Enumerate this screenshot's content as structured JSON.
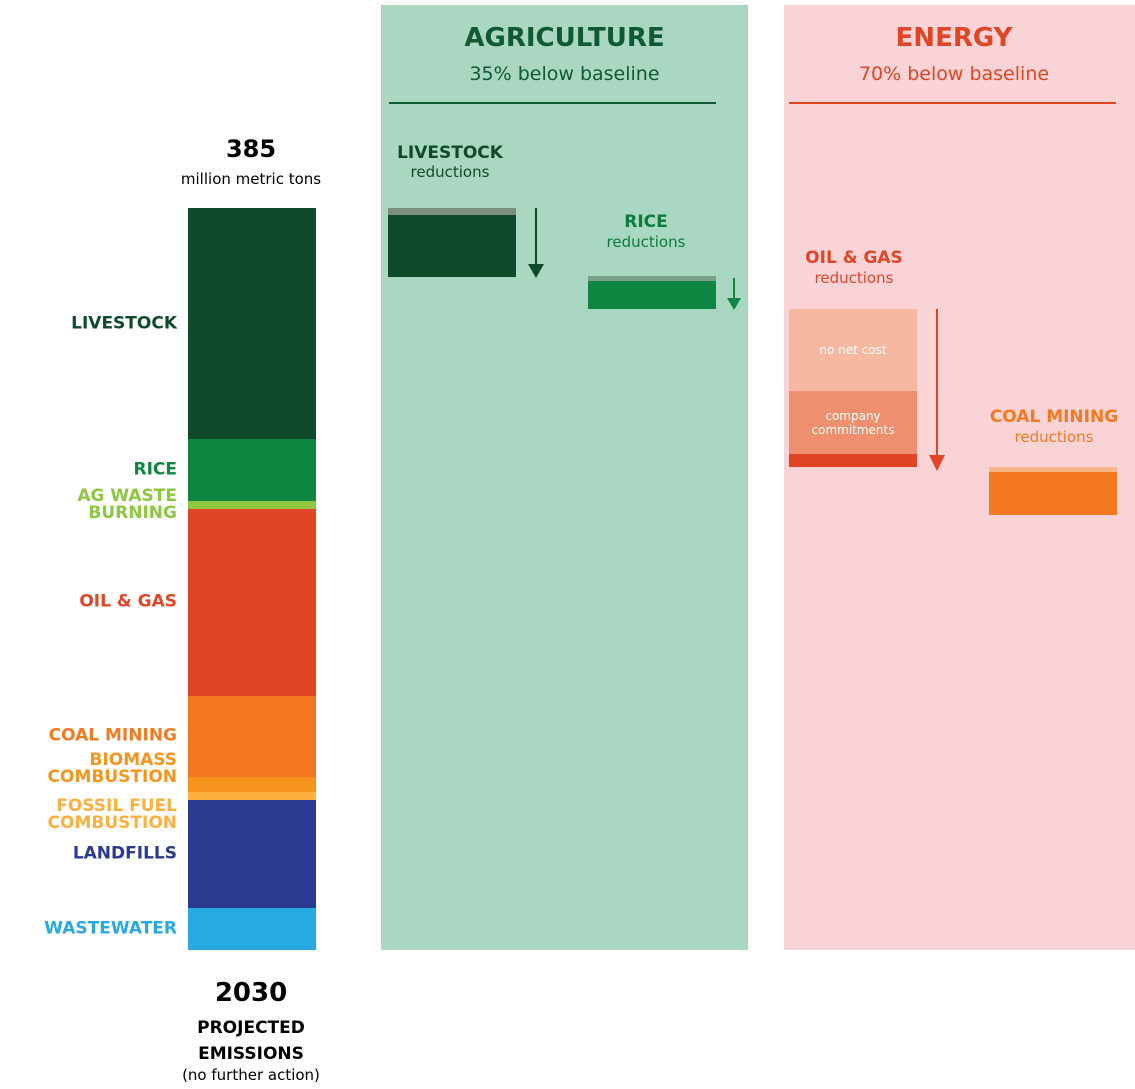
{
  "chart_data": {
    "type": "stacked-column",
    "total": 385,
    "unit": "million metric tons",
    "year": "2030",
    "caption": "PROJECTED EMISSIONS",
    "note": "(no further action)",
    "series": [
      {
        "name": "LIVESTOCK",
        "color": "#0f4a2a",
        "values": [
          120
        ]
      },
      {
        "name": "RICE",
        "color": "#0e8540",
        "values": [
          32
        ]
      },
      {
        "name": "AG WASTE\nBURNING",
        "color": "#8dc63f",
        "values": [
          4
        ]
      },
      {
        "name": "OIL & GAS",
        "color": "#e04526",
        "values": [
          97
        ]
      },
      {
        "name": "COAL MINING",
        "color": "#f47920",
        "values": [
          42
        ]
      },
      {
        "name": "BIOMASS\nCOMBUSTION",
        "color": "#f7941d",
        "values": [
          8
        ]
      },
      {
        "name": "FOSSIL FUEL\nCOMBUSTION",
        "color": "#fbb040",
        "values": [
          4
        ]
      },
      {
        "name": "LANDFILLS",
        "color": "#2b3990",
        "values": [
          56
        ]
      },
      {
        "name": "WASTEWATER",
        "color": "#27aae1",
        "values": [
          22
        ]
      }
    ],
    "panels": [
      {
        "title": "AGRICULTURE",
        "subtitle": "35% below baseline",
        "items": [
          {
            "title": "LIVESTOCK",
            "subtitle": "reductions"
          },
          {
            "title": "RICE",
            "subtitle": "reductions"
          }
        ]
      },
      {
        "title": "ENERGY",
        "subtitle": "70% below baseline",
        "items": [
          {
            "title": "OIL & GAS",
            "subtitle": "reductions",
            "parts": [
              "no net cost",
              "company commitments"
            ]
          },
          {
            "title": "COAL MINING",
            "subtitle": "reductions"
          }
        ]
      }
    ]
  }
}
